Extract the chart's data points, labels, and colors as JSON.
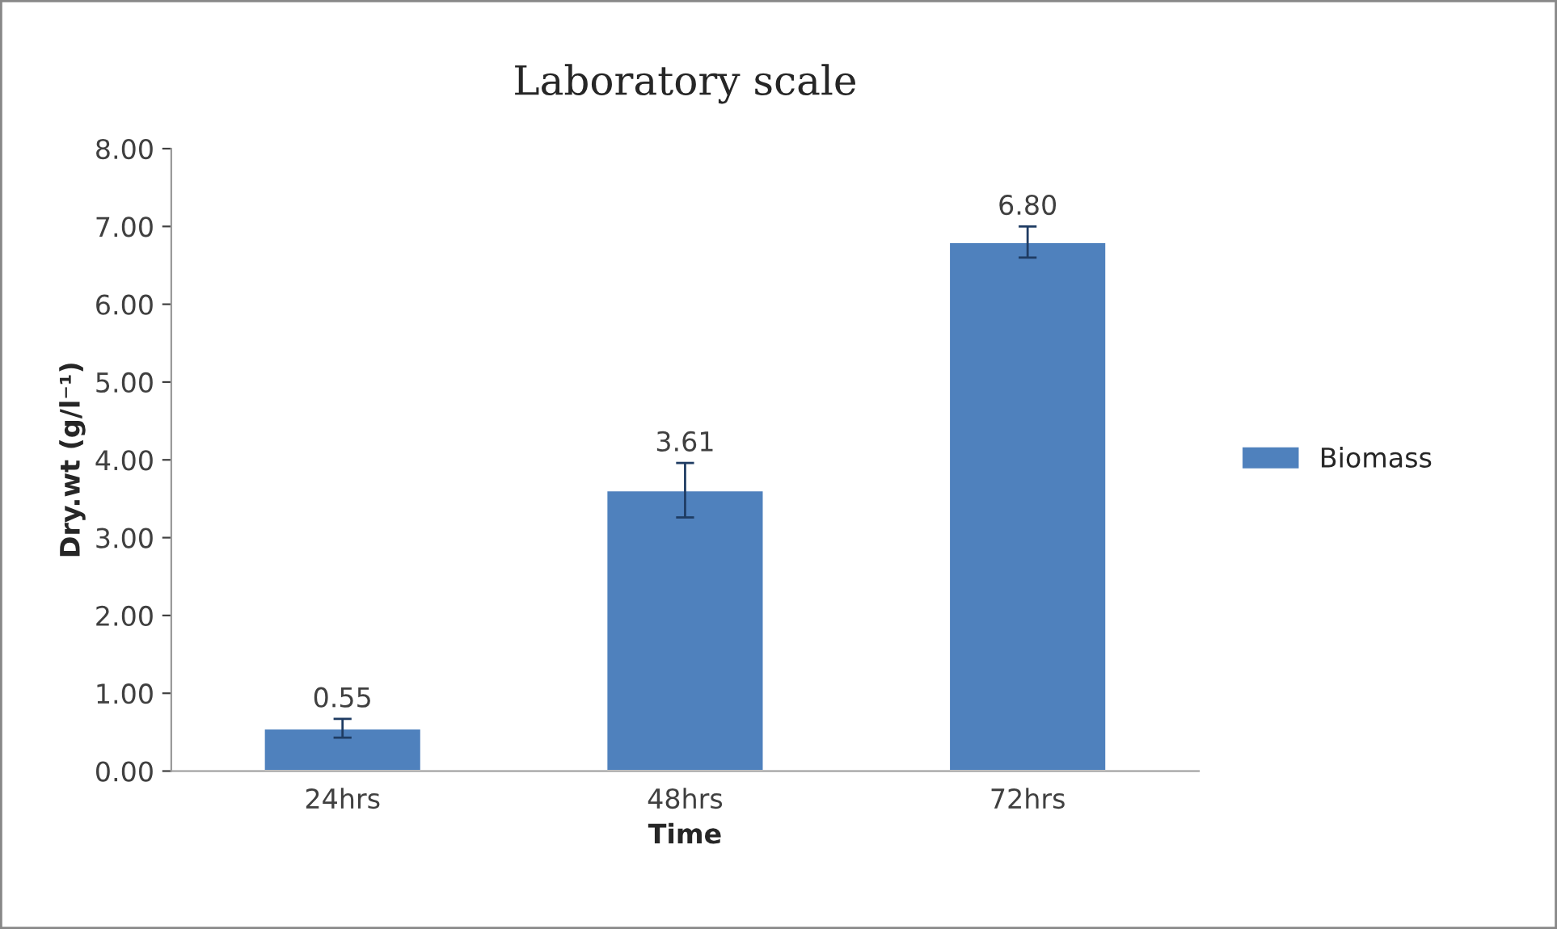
{
  "chart_data": {
    "type": "bar",
    "title": "Laboratory scale",
    "xlabel": "Time",
    "ylabel": "Dry.wt (g/l⁻¹)",
    "categories": [
      "24hrs",
      "48hrs",
      "72hrs"
    ],
    "series": [
      {
        "name": "Biomass",
        "color": "#4f81bd",
        "values": [
          0.55,
          3.61,
          6.8
        ],
        "errors": [
          0.12,
          0.35,
          0.2
        ],
        "value_labels": [
          "0.55",
          "3.61",
          "6.80"
        ]
      }
    ],
    "ylim": [
      0,
      8
    ],
    "yticks": [
      {
        "value": 0,
        "label": "0.00"
      },
      {
        "value": 1,
        "label": "1.00"
      },
      {
        "value": 2,
        "label": "2.00"
      },
      {
        "value": 3,
        "label": "3.00"
      },
      {
        "value": 4,
        "label": "4.00"
      },
      {
        "value": 5,
        "label": "5.00"
      },
      {
        "value": 6,
        "label": "6.00"
      },
      {
        "value": 7,
        "label": "7.00"
      },
      {
        "value": 8,
        "label": "8.00"
      }
    ],
    "legend": "right",
    "grid": false
  }
}
